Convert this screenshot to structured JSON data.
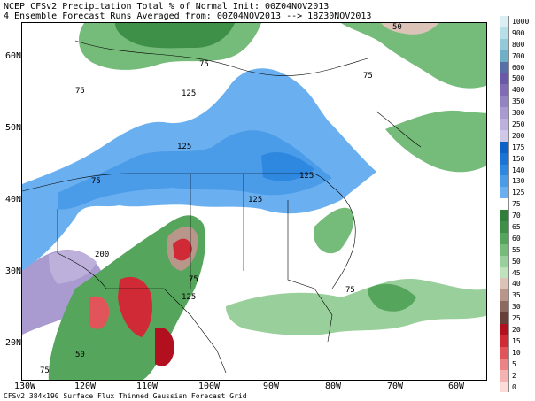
{
  "header": {
    "title_line1": "NCEP CFSv2 Precipitation Total % of Normal Init: 00Z04NOV2013",
    "title_line2": "4 Ensemble Forecast Runs Averaged from: 00Z04NOV2013 --> 18Z30NOV2013"
  },
  "footer": {
    "text": "CFSv2 384x190 Surface Flux Thinned Gaussian Forecast Grid"
  },
  "axes": {
    "lat_labels": [
      "60N",
      "50N",
      "40N",
      "30N",
      "20N"
    ],
    "lon_labels": [
      "130W",
      "120W",
      "110W",
      "100W",
      "90W",
      "80W",
      "70W",
      "60W"
    ]
  },
  "contour_labels": [
    "75",
    "75",
    "75",
    "125",
    "75",
    "50",
    "125",
    "125",
    "125",
    "200",
    "75",
    "125",
    "75",
    "75",
    "50"
  ],
  "legend": {
    "values": [
      "1000",
      "900",
      "800",
      "700",
      "600",
      "500",
      "400",
      "350",
      "300",
      "250",
      "200",
      "175",
      "150",
      "140",
      "130",
      "125",
      "75",
      "70",
      "65",
      "60",
      "55",
      "50",
      "45",
      "40",
      "35",
      "30",
      "25",
      "20",
      "15",
      "10",
      "5",
      "2",
      "0"
    ],
    "colors": [
      "#dbeef4",
      "#b8dfe8",
      "#93c9d8",
      "#6fb0c6",
      "#5870a8",
      "#6a58a8",
      "#7f6cb5",
      "#9483c2",
      "#a99acf",
      "#bdb1dc",
      "#d0c8e8",
      "#0d62c8",
      "#1a74d6",
      "#2f88e0",
      "#4a9be8",
      "#6aafef",
      "#ffffff",
      "#2f7e3a",
      "#3e8f47",
      "#56a55d",
      "#75bb7a",
      "#98cf9a",
      "#bfe2bd",
      "#dcc3b8",
      "#b9968a",
      "#8c6a60",
      "#65413a",
      "#b2101e",
      "#cf2a35",
      "#e0545a",
      "#ec8485",
      "#f4b3b0",
      "#fbdcd8"
    ]
  }
}
